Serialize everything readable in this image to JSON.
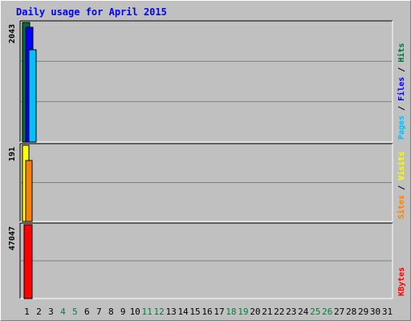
{
  "title": "Daily usage for April 2015",
  "colors": {
    "hits": "#006f3c",
    "files": "#0000ff",
    "pages": "#00c0ff",
    "visits": "#ffff00",
    "sites": "#ff8000",
    "kbytes": "#ff0000",
    "weekend_label": "#007f3f",
    "weekday_label": "#000000"
  },
  "chart_data": [
    {
      "type": "bar",
      "name": "Hits / Files / Pages",
      "ymax_label": "2043",
      "ylim": [
        0,
        2043
      ],
      "right_label_parts": [
        "Pages",
        "Files",
        "Hits"
      ],
      "categories": [
        "1",
        "2",
        "3",
        "4",
        "5",
        "6",
        "7",
        "8",
        "9",
        "10",
        "11",
        "12",
        "13",
        "14",
        "15",
        "16",
        "17",
        "18",
        "19",
        "20",
        "21",
        "22",
        "23",
        "24",
        "25",
        "26",
        "27",
        "28",
        "29",
        "30",
        "31"
      ],
      "series": [
        {
          "name": "Hits",
          "values": [
            2043,
            0,
            0,
            0,
            0,
            0,
            0,
            0,
            0,
            0,
            0,
            0,
            0,
            0,
            0,
            0,
            0,
            0,
            0,
            0,
            0,
            0,
            0,
            0,
            0,
            0,
            0,
            0,
            0,
            0,
            0
          ]
        },
        {
          "name": "Files",
          "values": [
            1960,
            0,
            0,
            0,
            0,
            0,
            0,
            0,
            0,
            0,
            0,
            0,
            0,
            0,
            0,
            0,
            0,
            0,
            0,
            0,
            0,
            0,
            0,
            0,
            0,
            0,
            0,
            0,
            0,
            0,
            0
          ]
        },
        {
          "name": "Pages",
          "values": [
            1580,
            0,
            0,
            0,
            0,
            0,
            0,
            0,
            0,
            0,
            0,
            0,
            0,
            0,
            0,
            0,
            0,
            0,
            0,
            0,
            0,
            0,
            0,
            0,
            0,
            0,
            0,
            0,
            0,
            0,
            0
          ]
        }
      ]
    },
    {
      "type": "bar",
      "name": "Visits / Sites",
      "ymax_label": "191",
      "ylim": [
        0,
        191
      ],
      "right_label_parts": [
        "Sites",
        "Visits"
      ],
      "categories": [
        "1",
        "2",
        "3",
        "4",
        "5",
        "6",
        "7",
        "8",
        "9",
        "10",
        "11",
        "12",
        "13",
        "14",
        "15",
        "16",
        "17",
        "18",
        "19",
        "20",
        "21",
        "22",
        "23",
        "24",
        "25",
        "26",
        "27",
        "28",
        "29",
        "30",
        "31"
      ],
      "series": [
        {
          "name": "Visits",
          "values": [
            191,
            0,
            0,
            0,
            0,
            0,
            0,
            0,
            0,
            0,
            0,
            0,
            0,
            0,
            0,
            0,
            0,
            0,
            0,
            0,
            0,
            0,
            0,
            0,
            0,
            0,
            0,
            0,
            0,
            0,
            0
          ]
        },
        {
          "name": "Sites",
          "values": [
            152,
            0,
            0,
            0,
            0,
            0,
            0,
            0,
            0,
            0,
            0,
            0,
            0,
            0,
            0,
            0,
            0,
            0,
            0,
            0,
            0,
            0,
            0,
            0,
            0,
            0,
            0,
            0,
            0,
            0,
            0
          ]
        }
      ]
    },
    {
      "type": "bar",
      "name": "KBytes",
      "ymax_label": "47047",
      "ylim": [
        0,
        47047
      ],
      "right_label_parts": [
        "KBytes"
      ],
      "categories": [
        "1",
        "2",
        "3",
        "4",
        "5",
        "6",
        "7",
        "8",
        "9",
        "10",
        "11",
        "12",
        "13",
        "14",
        "15",
        "16",
        "17",
        "18",
        "19",
        "20",
        "21",
        "22",
        "23",
        "24",
        "25",
        "26",
        "27",
        "28",
        "29",
        "30",
        "31"
      ],
      "series": [
        {
          "name": "KBytes",
          "values": [
            47047,
            0,
            0,
            0,
            0,
            0,
            0,
            0,
            0,
            0,
            0,
            0,
            0,
            0,
            0,
            0,
            0,
            0,
            0,
            0,
            0,
            0,
            0,
            0,
            0,
            0,
            0,
            0,
            0,
            0,
            0
          ]
        }
      ]
    }
  ],
  "x_labels": [
    "1",
    "2",
    "3",
    "4",
    "5",
    "6",
    "7",
    "8",
    "9",
    "10",
    "11",
    "12",
    "13",
    "14",
    "15",
    "16",
    "17",
    "18",
    "19",
    "20",
    "21",
    "22",
    "23",
    "24",
    "25",
    "26",
    "27",
    "28",
    "29",
    "30",
    "31"
  ],
  "weekend_days": [
    "4",
    "5",
    "11",
    "12",
    "18",
    "19",
    "25",
    "26"
  ]
}
